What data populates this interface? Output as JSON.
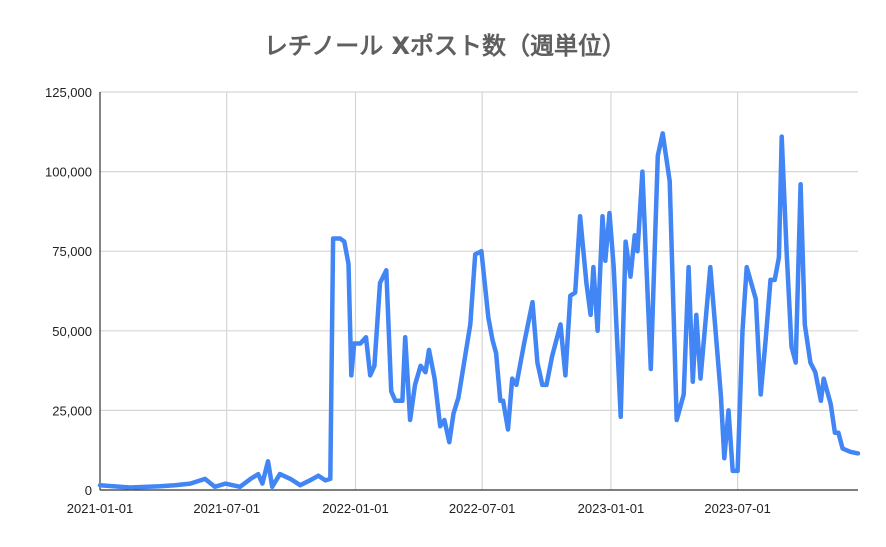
{
  "chart_data": {
    "type": "line",
    "title": "レチノール Xポスト数（週単位）",
    "xlabel": "",
    "ylabel": "",
    "ylim": [
      0,
      125000
    ],
    "xlim": [
      "2021-01-01",
      "2023-12-20"
    ],
    "grid": true,
    "legend": "none",
    "y_ticks": [
      "0",
      "25,000",
      "50,000",
      "75,000",
      "100,000",
      "125,000"
    ],
    "y_tick_values": [
      0,
      25000,
      50000,
      75000,
      100000,
      125000
    ],
    "x_ticks": [
      "2021-01-01",
      "2021-07-01",
      "2022-01-01",
      "2022-07-01",
      "2023-01-01",
      "2023-07-01"
    ],
    "line_color": "#4285f4",
    "series": [
      {
        "points": [
          [
            "2021-01-01",
            1500
          ],
          [
            "2021-02-13",
            800
          ],
          [
            "2021-03-28",
            1200
          ],
          [
            "2021-04-18",
            1500
          ],
          [
            "2021-05-10",
            2000
          ],
          [
            "2021-05-31",
            3500
          ],
          [
            "2021-06-14",
            1000
          ],
          [
            "2021-06-29",
            2000
          ],
          [
            "2021-07-20",
            1000
          ],
          [
            "2021-08-04",
            3500
          ],
          [
            "2021-08-15",
            5000
          ],
          [
            "2021-08-21",
            2000
          ],
          [
            "2021-08-29",
            9000
          ],
          [
            "2021-09-04",
            1000
          ],
          [
            "2021-09-15",
            5000
          ],
          [
            "2021-09-30",
            3500
          ],
          [
            "2021-10-14",
            1500
          ],
          [
            "2021-10-28",
            3000
          ],
          [
            "2021-11-09",
            4500
          ],
          [
            "2021-11-19",
            3000
          ],
          [
            "2021-11-26",
            3500
          ],
          [
            "2021-11-30",
            79000
          ],
          [
            "2021-12-10",
            79000
          ],
          [
            "2021-12-16",
            78000
          ],
          [
            "2021-12-22",
            71000
          ],
          [
            "2021-12-26",
            36000
          ],
          [
            "2021-12-30",
            46000
          ],
          [
            "2022-01-08",
            46000
          ],
          [
            "2022-01-16",
            48000
          ],
          [
            "2022-01-22",
            36000
          ],
          [
            "2022-01-28",
            39000
          ],
          [
            "2022-02-05",
            65000
          ],
          [
            "2022-02-14",
            69000
          ],
          [
            "2022-02-21",
            31000
          ],
          [
            "2022-02-27",
            28000
          ],
          [
            "2022-03-09",
            28000
          ],
          [
            "2022-03-13",
            48000
          ],
          [
            "2022-03-20",
            22000
          ],
          [
            "2022-03-27",
            33000
          ],
          [
            "2022-04-04",
            39000
          ],
          [
            "2022-04-11",
            37000
          ],
          [
            "2022-04-16",
            44000
          ],
          [
            "2022-04-24",
            35000
          ],
          [
            "2022-05-02",
            20000
          ],
          [
            "2022-05-08",
            22000
          ],
          [
            "2022-05-15",
            15000
          ],
          [
            "2022-05-21",
            24000
          ],
          [
            "2022-05-28",
            29000
          ],
          [
            "2022-06-14",
            52000
          ],
          [
            "2022-06-21",
            74000
          ],
          [
            "2022-06-30",
            75000
          ],
          [
            "2022-07-10",
            54000
          ],
          [
            "2022-07-16",
            47000
          ],
          [
            "2022-07-21",
            43000
          ],
          [
            "2022-07-27",
            28000
          ],
          [
            "2022-07-31",
            28000
          ],
          [
            "2022-08-07",
            19000
          ],
          [
            "2022-08-13",
            35000
          ],
          [
            "2022-08-19",
            33000
          ],
          [
            "2022-08-30",
            46000
          ],
          [
            "2022-09-11",
            59000
          ],
          [
            "2022-09-18",
            40000
          ],
          [
            "2022-09-25",
            33000
          ],
          [
            "2022-10-01",
            33000
          ],
          [
            "2022-10-09",
            42000
          ],
          [
            "2022-10-21",
            52000
          ],
          [
            "2022-10-28",
            36000
          ],
          [
            "2022-11-04",
            61000
          ],
          [
            "2022-11-11",
            62000
          ],
          [
            "2022-11-18",
            86000
          ],
          [
            "2022-11-27",
            65000
          ],
          [
            "2022-12-03",
            55000
          ],
          [
            "2022-12-07",
            70000
          ],
          [
            "2022-12-13",
            50000
          ],
          [
            "2022-12-20",
            86000
          ],
          [
            "2022-12-24",
            72000
          ],
          [
            "2022-12-30",
            87000
          ],
          [
            "2023-01-05",
            70000
          ],
          [
            "2023-01-15",
            23000
          ],
          [
            "2023-01-22",
            78000
          ],
          [
            "2023-01-29",
            67000
          ],
          [
            "2023-02-04",
            80000
          ],
          [
            "2023-02-08",
            75000
          ],
          [
            "2023-02-15",
            100000
          ],
          [
            "2023-02-27",
            38000
          ],
          [
            "2023-03-09",
            105000
          ],
          [
            "2023-03-16",
            112000
          ],
          [
            "2023-03-26",
            97000
          ],
          [
            "2023-04-05",
            22000
          ],
          [
            "2023-04-15",
            30000
          ],
          [
            "2023-04-22",
            70000
          ],
          [
            "2023-04-28",
            34000
          ],
          [
            "2023-05-03",
            55000
          ],
          [
            "2023-05-09",
            35000
          ],
          [
            "2023-05-23",
            70000
          ],
          [
            "2023-06-07",
            30000
          ],
          [
            "2023-06-12",
            10000
          ],
          [
            "2023-06-18",
            25000
          ],
          [
            "2023-06-24",
            6000
          ],
          [
            "2023-07-01",
            6000
          ],
          [
            "2023-07-08",
            50000
          ],
          [
            "2023-07-14",
            70000
          ],
          [
            "2023-07-27",
            60000
          ],
          [
            "2023-08-03",
            30000
          ],
          [
            "2023-08-10",
            47000
          ],
          [
            "2023-08-17",
            66000
          ],
          [
            "2023-08-23",
            66000
          ],
          [
            "2023-08-29",
            73000
          ],
          [
            "2023-09-02",
            111000
          ],
          [
            "2023-09-09",
            75000
          ],
          [
            "2023-09-16",
            45000
          ],
          [
            "2023-09-22",
            40000
          ],
          [
            "2023-09-29",
            96000
          ],
          [
            "2023-10-05",
            52000
          ],
          [
            "2023-10-13",
            40000
          ],
          [
            "2023-10-20",
            37000
          ],
          [
            "2023-10-28",
            28000
          ],
          [
            "2023-11-01",
            35000
          ],
          [
            "2023-11-11",
            27000
          ],
          [
            "2023-11-17",
            18000
          ],
          [
            "2023-11-22",
            18000
          ],
          [
            "2023-11-28",
            13000
          ],
          [
            "2023-12-09",
            12000
          ],
          [
            "2023-12-20",
            11500
          ]
        ]
      }
    ]
  }
}
